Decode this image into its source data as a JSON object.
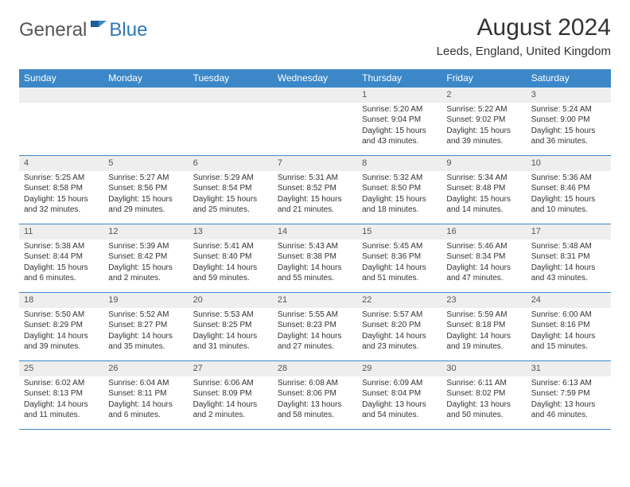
{
  "logo": {
    "general": "General",
    "blue": "Blue"
  },
  "title": "August 2024",
  "location": "Leeds, England, United Kingdom",
  "weekdays": [
    "Sunday",
    "Monday",
    "Tuesday",
    "Wednesday",
    "Thursday",
    "Friday",
    "Saturday"
  ],
  "colors": {
    "header_bg": "#3b87c8",
    "header_text": "#ffffff",
    "border": "#3b87c8",
    "daynum_bg": "#eeeeee",
    "body_text": "#333333",
    "logo_general": "#555555",
    "logo_blue": "#2f77b9"
  },
  "weeks": [
    [
      null,
      null,
      null,
      null,
      {
        "n": "1",
        "sr": "Sunrise: 5:20 AM",
        "ss": "Sunset: 9:04 PM",
        "dl": "Daylight: 15 hours and 43 minutes."
      },
      {
        "n": "2",
        "sr": "Sunrise: 5:22 AM",
        "ss": "Sunset: 9:02 PM",
        "dl": "Daylight: 15 hours and 39 minutes."
      },
      {
        "n": "3",
        "sr": "Sunrise: 5:24 AM",
        "ss": "Sunset: 9:00 PM",
        "dl": "Daylight: 15 hours and 36 minutes."
      }
    ],
    [
      {
        "n": "4",
        "sr": "Sunrise: 5:25 AM",
        "ss": "Sunset: 8:58 PM",
        "dl": "Daylight: 15 hours and 32 minutes."
      },
      {
        "n": "5",
        "sr": "Sunrise: 5:27 AM",
        "ss": "Sunset: 8:56 PM",
        "dl": "Daylight: 15 hours and 29 minutes."
      },
      {
        "n": "6",
        "sr": "Sunrise: 5:29 AM",
        "ss": "Sunset: 8:54 PM",
        "dl": "Daylight: 15 hours and 25 minutes."
      },
      {
        "n": "7",
        "sr": "Sunrise: 5:31 AM",
        "ss": "Sunset: 8:52 PM",
        "dl": "Daylight: 15 hours and 21 minutes."
      },
      {
        "n": "8",
        "sr": "Sunrise: 5:32 AM",
        "ss": "Sunset: 8:50 PM",
        "dl": "Daylight: 15 hours and 18 minutes."
      },
      {
        "n": "9",
        "sr": "Sunrise: 5:34 AM",
        "ss": "Sunset: 8:48 PM",
        "dl": "Daylight: 15 hours and 14 minutes."
      },
      {
        "n": "10",
        "sr": "Sunrise: 5:36 AM",
        "ss": "Sunset: 8:46 PM",
        "dl": "Daylight: 15 hours and 10 minutes."
      }
    ],
    [
      {
        "n": "11",
        "sr": "Sunrise: 5:38 AM",
        "ss": "Sunset: 8:44 PM",
        "dl": "Daylight: 15 hours and 6 minutes."
      },
      {
        "n": "12",
        "sr": "Sunrise: 5:39 AM",
        "ss": "Sunset: 8:42 PM",
        "dl": "Daylight: 15 hours and 2 minutes."
      },
      {
        "n": "13",
        "sr": "Sunrise: 5:41 AM",
        "ss": "Sunset: 8:40 PM",
        "dl": "Daylight: 14 hours and 59 minutes."
      },
      {
        "n": "14",
        "sr": "Sunrise: 5:43 AM",
        "ss": "Sunset: 8:38 PM",
        "dl": "Daylight: 14 hours and 55 minutes."
      },
      {
        "n": "15",
        "sr": "Sunrise: 5:45 AM",
        "ss": "Sunset: 8:36 PM",
        "dl": "Daylight: 14 hours and 51 minutes."
      },
      {
        "n": "16",
        "sr": "Sunrise: 5:46 AM",
        "ss": "Sunset: 8:34 PM",
        "dl": "Daylight: 14 hours and 47 minutes."
      },
      {
        "n": "17",
        "sr": "Sunrise: 5:48 AM",
        "ss": "Sunset: 8:31 PM",
        "dl": "Daylight: 14 hours and 43 minutes."
      }
    ],
    [
      {
        "n": "18",
        "sr": "Sunrise: 5:50 AM",
        "ss": "Sunset: 8:29 PM",
        "dl": "Daylight: 14 hours and 39 minutes."
      },
      {
        "n": "19",
        "sr": "Sunrise: 5:52 AM",
        "ss": "Sunset: 8:27 PM",
        "dl": "Daylight: 14 hours and 35 minutes."
      },
      {
        "n": "20",
        "sr": "Sunrise: 5:53 AM",
        "ss": "Sunset: 8:25 PM",
        "dl": "Daylight: 14 hours and 31 minutes."
      },
      {
        "n": "21",
        "sr": "Sunrise: 5:55 AM",
        "ss": "Sunset: 8:23 PM",
        "dl": "Daylight: 14 hours and 27 minutes."
      },
      {
        "n": "22",
        "sr": "Sunrise: 5:57 AM",
        "ss": "Sunset: 8:20 PM",
        "dl": "Daylight: 14 hours and 23 minutes."
      },
      {
        "n": "23",
        "sr": "Sunrise: 5:59 AM",
        "ss": "Sunset: 8:18 PM",
        "dl": "Daylight: 14 hours and 19 minutes."
      },
      {
        "n": "24",
        "sr": "Sunrise: 6:00 AM",
        "ss": "Sunset: 8:16 PM",
        "dl": "Daylight: 14 hours and 15 minutes."
      }
    ],
    [
      {
        "n": "25",
        "sr": "Sunrise: 6:02 AM",
        "ss": "Sunset: 8:13 PM",
        "dl": "Daylight: 14 hours and 11 minutes."
      },
      {
        "n": "26",
        "sr": "Sunrise: 6:04 AM",
        "ss": "Sunset: 8:11 PM",
        "dl": "Daylight: 14 hours and 6 minutes."
      },
      {
        "n": "27",
        "sr": "Sunrise: 6:06 AM",
        "ss": "Sunset: 8:09 PM",
        "dl": "Daylight: 14 hours and 2 minutes."
      },
      {
        "n": "28",
        "sr": "Sunrise: 6:08 AM",
        "ss": "Sunset: 8:06 PM",
        "dl": "Daylight: 13 hours and 58 minutes."
      },
      {
        "n": "29",
        "sr": "Sunrise: 6:09 AM",
        "ss": "Sunset: 8:04 PM",
        "dl": "Daylight: 13 hours and 54 minutes."
      },
      {
        "n": "30",
        "sr": "Sunrise: 6:11 AM",
        "ss": "Sunset: 8:02 PM",
        "dl": "Daylight: 13 hours and 50 minutes."
      },
      {
        "n": "31",
        "sr": "Sunrise: 6:13 AM",
        "ss": "Sunset: 7:59 PM",
        "dl": "Daylight: 13 hours and 46 minutes."
      }
    ]
  ]
}
